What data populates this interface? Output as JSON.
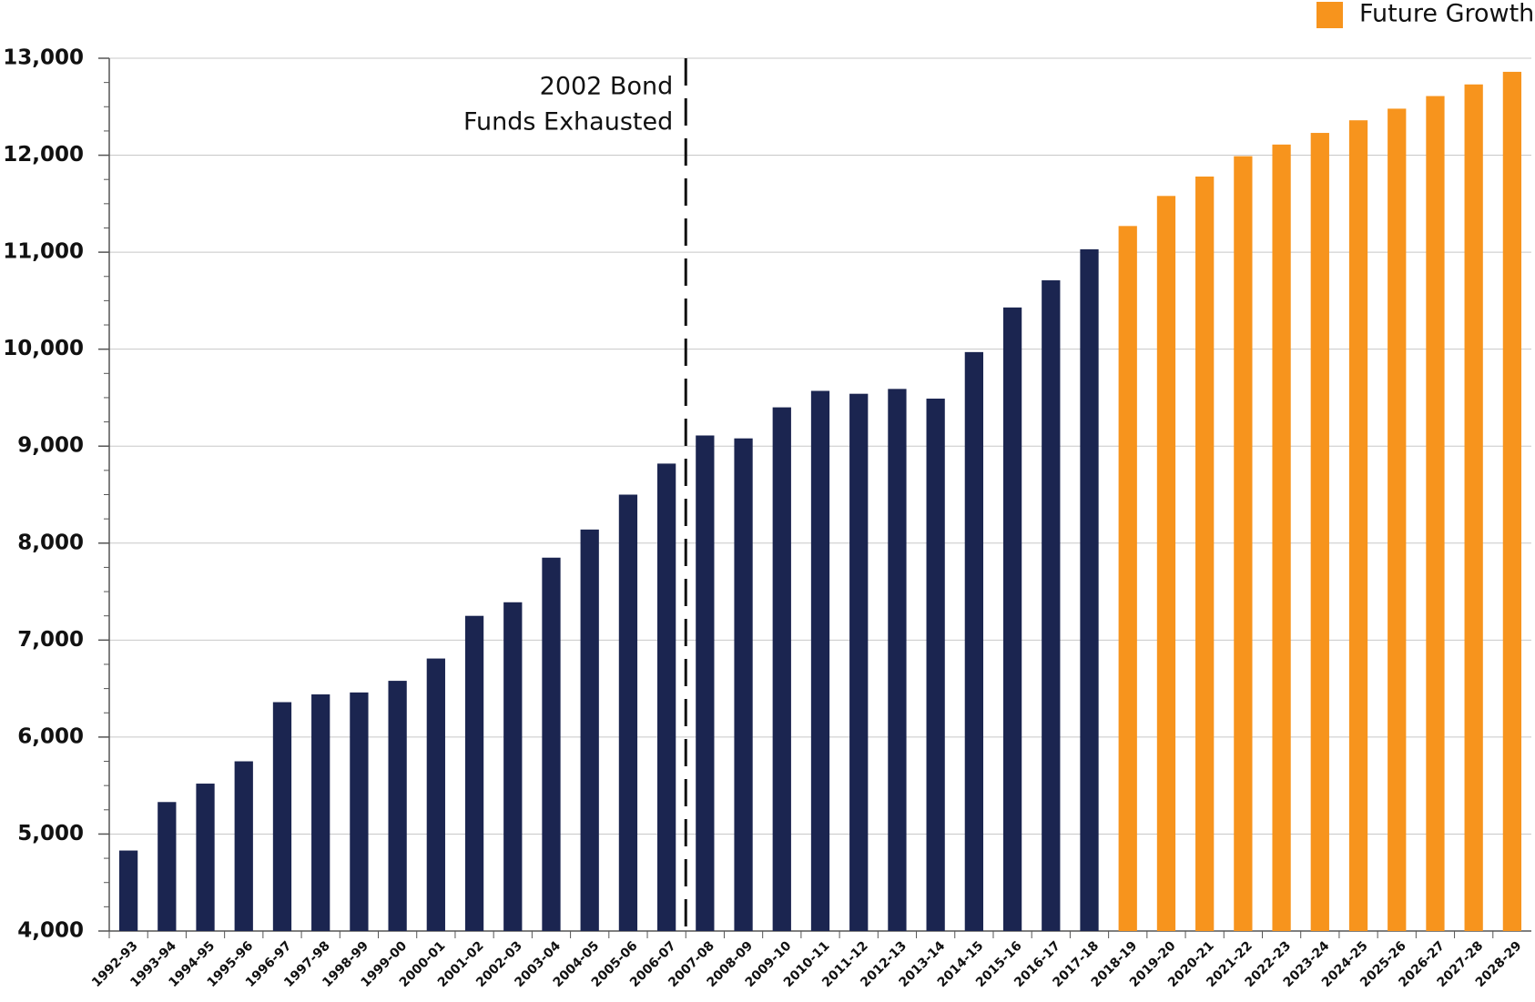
{
  "chart_data": {
    "type": "bar",
    "categories": [
      "1992-93",
      "1993-94",
      "1994-95",
      "1995-96",
      "1996-97",
      "1997-98",
      "1998-99",
      "1999-00",
      "2000-01",
      "2001-02",
      "2002-03",
      "2003-04",
      "2004-05",
      "2005-06",
      "2006-07",
      "2007-08",
      "2008-09",
      "2009-10",
      "2010-11",
      "2011-12",
      "2012-13",
      "2013-14",
      "2014-15",
      "2015-16",
      "2016-17",
      "2017-18",
      "2018-19",
      "2019-20",
      "2020-21",
      "2021-22",
      "2022-23",
      "2023-24",
      "2024-25",
      "2025-26",
      "2026-27",
      "2027-28",
      "2028-29"
    ],
    "series": [
      {
        "color": "#1b2550",
        "values": [
          4830,
          5330,
          5520,
          5750,
          6360,
          6440,
          6460,
          6580,
          6810,
          7250,
          7390,
          7850,
          8140,
          8500,
          8820,
          9110,
          9080,
          9400,
          9570,
          9540,
          9590,
          9490,
          9970,
          10430,
          10710,
          11030,
          null,
          null,
          null,
          null,
          null,
          null,
          null,
          null,
          null,
          null,
          null
        ]
      },
      {
        "name": "Future Growth",
        "color": "#f7941d",
        "values": [
          null,
          null,
          null,
          null,
          null,
          null,
          null,
          null,
          null,
          null,
          null,
          null,
          null,
          null,
          null,
          null,
          null,
          null,
          null,
          null,
          null,
          null,
          null,
          null,
          null,
          null,
          11270,
          11580,
          11780,
          11990,
          12110,
          12230,
          12360,
          12480,
          12610,
          12730,
          12860
        ]
      }
    ],
    "annotation": [
      "2002 Bond",
      "Funds Exhausted"
    ],
    "ylim": [
      4000,
      13000
    ],
    "yticks": [
      {
        "value": 4000,
        "label": "4,000"
      },
      {
        "value": 5000,
        "label": "5,000"
      },
      {
        "value": 6000,
        "label": "6,000"
      },
      {
        "value": 7000,
        "label": "7,000"
      },
      {
        "value": 8000,
        "label": "8,000"
      },
      {
        "value": 9000,
        "label": "9,000"
      },
      {
        "value": 10000,
        "label": "10,000"
      },
      {
        "value": 11000,
        "label": "11,000"
      },
      {
        "value": 12000,
        "label": "12,000"
      },
      {
        "value": 13000,
        "label": "13,000"
      }
    ],
    "grid": true
  }
}
